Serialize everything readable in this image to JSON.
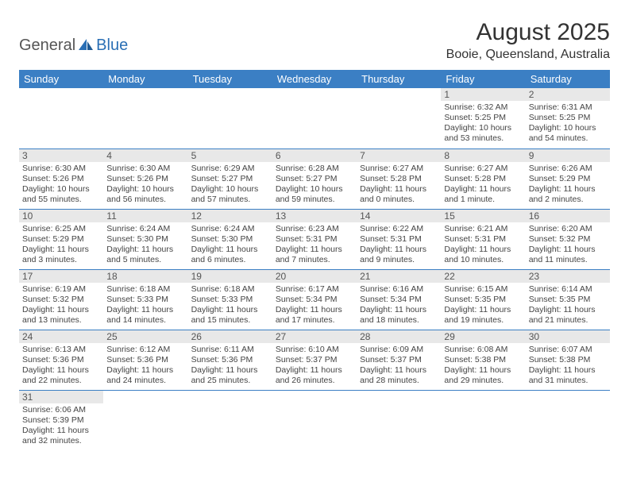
{
  "brand": {
    "part1": "General",
    "part2": "Blue"
  },
  "title": "August 2025",
  "location": "Booie, Queensland, Australia",
  "colors": {
    "header_bg": "#3b7fc4",
    "header_fg": "#ffffff",
    "border": "#3b7fc4",
    "daynum_bg": "#e8e8e8",
    "brand_blue": "#2a6fb5",
    "brand_gray": "#555555",
    "text": "#444444"
  },
  "weekdays": [
    "Sunday",
    "Monday",
    "Tuesday",
    "Wednesday",
    "Thursday",
    "Friday",
    "Saturday"
  ],
  "weeks": [
    [
      null,
      null,
      null,
      null,
      null,
      {
        "n": "1",
        "sr": "Sunrise: 6:32 AM",
        "ss": "Sunset: 5:25 PM",
        "dl1": "Daylight: 10 hours",
        "dl2": "and 53 minutes."
      },
      {
        "n": "2",
        "sr": "Sunrise: 6:31 AM",
        "ss": "Sunset: 5:25 PM",
        "dl1": "Daylight: 10 hours",
        "dl2": "and 54 minutes."
      }
    ],
    [
      {
        "n": "3",
        "sr": "Sunrise: 6:30 AM",
        "ss": "Sunset: 5:26 PM",
        "dl1": "Daylight: 10 hours",
        "dl2": "and 55 minutes."
      },
      {
        "n": "4",
        "sr": "Sunrise: 6:30 AM",
        "ss": "Sunset: 5:26 PM",
        "dl1": "Daylight: 10 hours",
        "dl2": "and 56 minutes."
      },
      {
        "n": "5",
        "sr": "Sunrise: 6:29 AM",
        "ss": "Sunset: 5:27 PM",
        "dl1": "Daylight: 10 hours",
        "dl2": "and 57 minutes."
      },
      {
        "n": "6",
        "sr": "Sunrise: 6:28 AM",
        "ss": "Sunset: 5:27 PM",
        "dl1": "Daylight: 10 hours",
        "dl2": "and 59 minutes."
      },
      {
        "n": "7",
        "sr": "Sunrise: 6:27 AM",
        "ss": "Sunset: 5:28 PM",
        "dl1": "Daylight: 11 hours",
        "dl2": "and 0 minutes."
      },
      {
        "n": "8",
        "sr": "Sunrise: 6:27 AM",
        "ss": "Sunset: 5:28 PM",
        "dl1": "Daylight: 11 hours",
        "dl2": "and 1 minute."
      },
      {
        "n": "9",
        "sr": "Sunrise: 6:26 AM",
        "ss": "Sunset: 5:29 PM",
        "dl1": "Daylight: 11 hours",
        "dl2": "and 2 minutes."
      }
    ],
    [
      {
        "n": "10",
        "sr": "Sunrise: 6:25 AM",
        "ss": "Sunset: 5:29 PM",
        "dl1": "Daylight: 11 hours",
        "dl2": "and 3 minutes."
      },
      {
        "n": "11",
        "sr": "Sunrise: 6:24 AM",
        "ss": "Sunset: 5:30 PM",
        "dl1": "Daylight: 11 hours",
        "dl2": "and 5 minutes."
      },
      {
        "n": "12",
        "sr": "Sunrise: 6:24 AM",
        "ss": "Sunset: 5:30 PM",
        "dl1": "Daylight: 11 hours",
        "dl2": "and 6 minutes."
      },
      {
        "n": "13",
        "sr": "Sunrise: 6:23 AM",
        "ss": "Sunset: 5:31 PM",
        "dl1": "Daylight: 11 hours",
        "dl2": "and 7 minutes."
      },
      {
        "n": "14",
        "sr": "Sunrise: 6:22 AM",
        "ss": "Sunset: 5:31 PM",
        "dl1": "Daylight: 11 hours",
        "dl2": "and 9 minutes."
      },
      {
        "n": "15",
        "sr": "Sunrise: 6:21 AM",
        "ss": "Sunset: 5:31 PM",
        "dl1": "Daylight: 11 hours",
        "dl2": "and 10 minutes."
      },
      {
        "n": "16",
        "sr": "Sunrise: 6:20 AM",
        "ss": "Sunset: 5:32 PM",
        "dl1": "Daylight: 11 hours",
        "dl2": "and 11 minutes."
      }
    ],
    [
      {
        "n": "17",
        "sr": "Sunrise: 6:19 AM",
        "ss": "Sunset: 5:32 PM",
        "dl1": "Daylight: 11 hours",
        "dl2": "and 13 minutes."
      },
      {
        "n": "18",
        "sr": "Sunrise: 6:18 AM",
        "ss": "Sunset: 5:33 PM",
        "dl1": "Daylight: 11 hours",
        "dl2": "and 14 minutes."
      },
      {
        "n": "19",
        "sr": "Sunrise: 6:18 AM",
        "ss": "Sunset: 5:33 PM",
        "dl1": "Daylight: 11 hours",
        "dl2": "and 15 minutes."
      },
      {
        "n": "20",
        "sr": "Sunrise: 6:17 AM",
        "ss": "Sunset: 5:34 PM",
        "dl1": "Daylight: 11 hours",
        "dl2": "and 17 minutes."
      },
      {
        "n": "21",
        "sr": "Sunrise: 6:16 AM",
        "ss": "Sunset: 5:34 PM",
        "dl1": "Daylight: 11 hours",
        "dl2": "and 18 minutes."
      },
      {
        "n": "22",
        "sr": "Sunrise: 6:15 AM",
        "ss": "Sunset: 5:35 PM",
        "dl1": "Daylight: 11 hours",
        "dl2": "and 19 minutes."
      },
      {
        "n": "23",
        "sr": "Sunrise: 6:14 AM",
        "ss": "Sunset: 5:35 PM",
        "dl1": "Daylight: 11 hours",
        "dl2": "and 21 minutes."
      }
    ],
    [
      {
        "n": "24",
        "sr": "Sunrise: 6:13 AM",
        "ss": "Sunset: 5:36 PM",
        "dl1": "Daylight: 11 hours",
        "dl2": "and 22 minutes."
      },
      {
        "n": "25",
        "sr": "Sunrise: 6:12 AM",
        "ss": "Sunset: 5:36 PM",
        "dl1": "Daylight: 11 hours",
        "dl2": "and 24 minutes."
      },
      {
        "n": "26",
        "sr": "Sunrise: 6:11 AM",
        "ss": "Sunset: 5:36 PM",
        "dl1": "Daylight: 11 hours",
        "dl2": "and 25 minutes."
      },
      {
        "n": "27",
        "sr": "Sunrise: 6:10 AM",
        "ss": "Sunset: 5:37 PM",
        "dl1": "Daylight: 11 hours",
        "dl2": "and 26 minutes."
      },
      {
        "n": "28",
        "sr": "Sunrise: 6:09 AM",
        "ss": "Sunset: 5:37 PM",
        "dl1": "Daylight: 11 hours",
        "dl2": "and 28 minutes."
      },
      {
        "n": "29",
        "sr": "Sunrise: 6:08 AM",
        "ss": "Sunset: 5:38 PM",
        "dl1": "Daylight: 11 hours",
        "dl2": "and 29 minutes."
      },
      {
        "n": "30",
        "sr": "Sunrise: 6:07 AM",
        "ss": "Sunset: 5:38 PM",
        "dl1": "Daylight: 11 hours",
        "dl2": "and 31 minutes."
      }
    ],
    [
      {
        "n": "31",
        "sr": "Sunrise: 6:06 AM",
        "ss": "Sunset: 5:39 PM",
        "dl1": "Daylight: 11 hours",
        "dl2": "and 32 minutes."
      },
      null,
      null,
      null,
      null,
      null,
      null
    ]
  ]
}
